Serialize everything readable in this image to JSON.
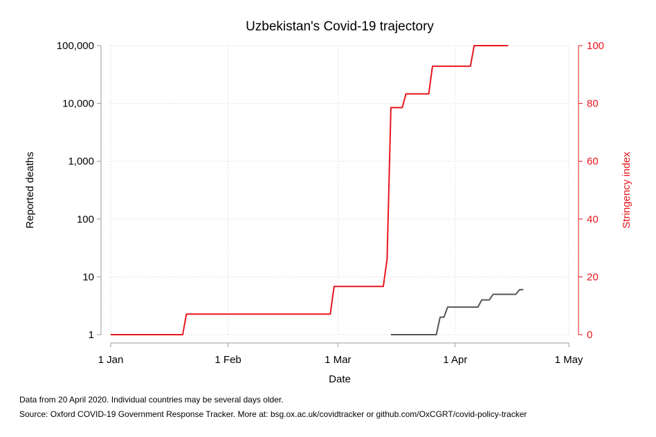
{
  "chart_data": {
    "type": "line",
    "title": "Uzbekistan's Covid-19 trajectory",
    "xlabel": "Date",
    "ylabel_left": "Reported deaths",
    "ylabel_right": "Stringency index",
    "x_ticks": [
      "1 Jan",
      "1 Feb",
      "1 Mar",
      "1 Apr",
      "1 May"
    ],
    "xlim": [
      "2020-01-01",
      "2020-05-01"
    ],
    "y_left_ticks": [
      1,
      10,
      100,
      1000,
      10000,
      100000
    ],
    "y_left_tick_labels": [
      "1",
      "10",
      "100",
      "1,000",
      "10,000",
      "100,000"
    ],
    "y_left_scale": "log",
    "y_left_lim": [
      1,
      100000
    ],
    "y_right_ticks": [
      0,
      20,
      40,
      60,
      80,
      100
    ],
    "y_right_tick_labels": [
      "0",
      "20",
      "40",
      "60",
      "80",
      "100"
    ],
    "y_right_lim": [
      0,
      100
    ],
    "grid": true,
    "series": [
      {
        "name": "Reported deaths",
        "axis": "left",
        "color": "#555555",
        "points": [
          [
            "2020-03-15",
            1
          ],
          [
            "2020-03-27",
            1
          ],
          [
            "2020-03-28",
            2
          ],
          [
            "2020-03-29",
            2
          ],
          [
            "2020-03-30",
            3
          ],
          [
            "2020-04-07",
            3
          ],
          [
            "2020-04-08",
            4
          ],
          [
            "2020-04-10",
            4
          ],
          [
            "2020-04-11",
            5
          ],
          [
            "2020-04-17",
            5
          ],
          [
            "2020-04-18",
            6
          ],
          [
            "2020-04-19",
            6
          ]
        ]
      },
      {
        "name": "Stringency index",
        "axis": "right",
        "color": "#e8141c",
        "points": [
          [
            "2020-01-01",
            0
          ],
          [
            "2020-01-20",
            0
          ],
          [
            "2020-01-21",
            7.14
          ],
          [
            "2020-02-28",
            7.14
          ],
          [
            "2020-02-29",
            16.67
          ],
          [
            "2020-03-13",
            16.67
          ],
          [
            "2020-03-14",
            26.19
          ],
          [
            "2020-03-15",
            78.57
          ],
          [
            "2020-03-18",
            78.57
          ],
          [
            "2020-03-19",
            83.33
          ],
          [
            "2020-03-25",
            83.33
          ],
          [
            "2020-03-26",
            92.86
          ],
          [
            "2020-04-05",
            92.86
          ],
          [
            "2020-04-06",
            100
          ],
          [
            "2020-04-15",
            100
          ]
        ]
      }
    ]
  },
  "footnotes": {
    "line1": "Data from 20 April 2020. Individual countries may be several days older.",
    "line2": "Source: Oxford COVID-19 Government Response Tracker. More at: bsg.ox.ac.uk/covidtracker or github.com/OxCGRT/covid-policy-tracker"
  }
}
